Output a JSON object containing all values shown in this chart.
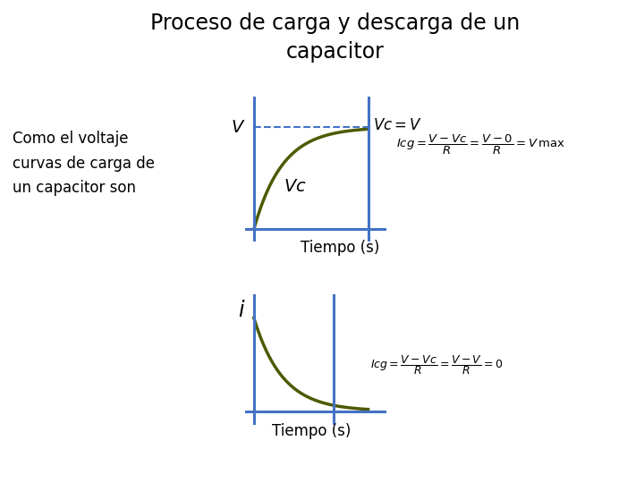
{
  "title_line1": "Proceso de carga y descarga de un",
  "title_line2": "capacitor",
  "subtitle": "Como el voltaje\ncurvas de carga de\nun capacitor son",
  "curve_color": "#4d5a00",
  "axis_color": "#4472c4",
  "dashed_color": "#4472c4",
  "bg_color": "#ffffff",
  "title_fontsize": 17,
  "subtitle_fontsize": 12,
  "label_fontsize": 12,
  "tiempo_label": "Tiempo (s)"
}
